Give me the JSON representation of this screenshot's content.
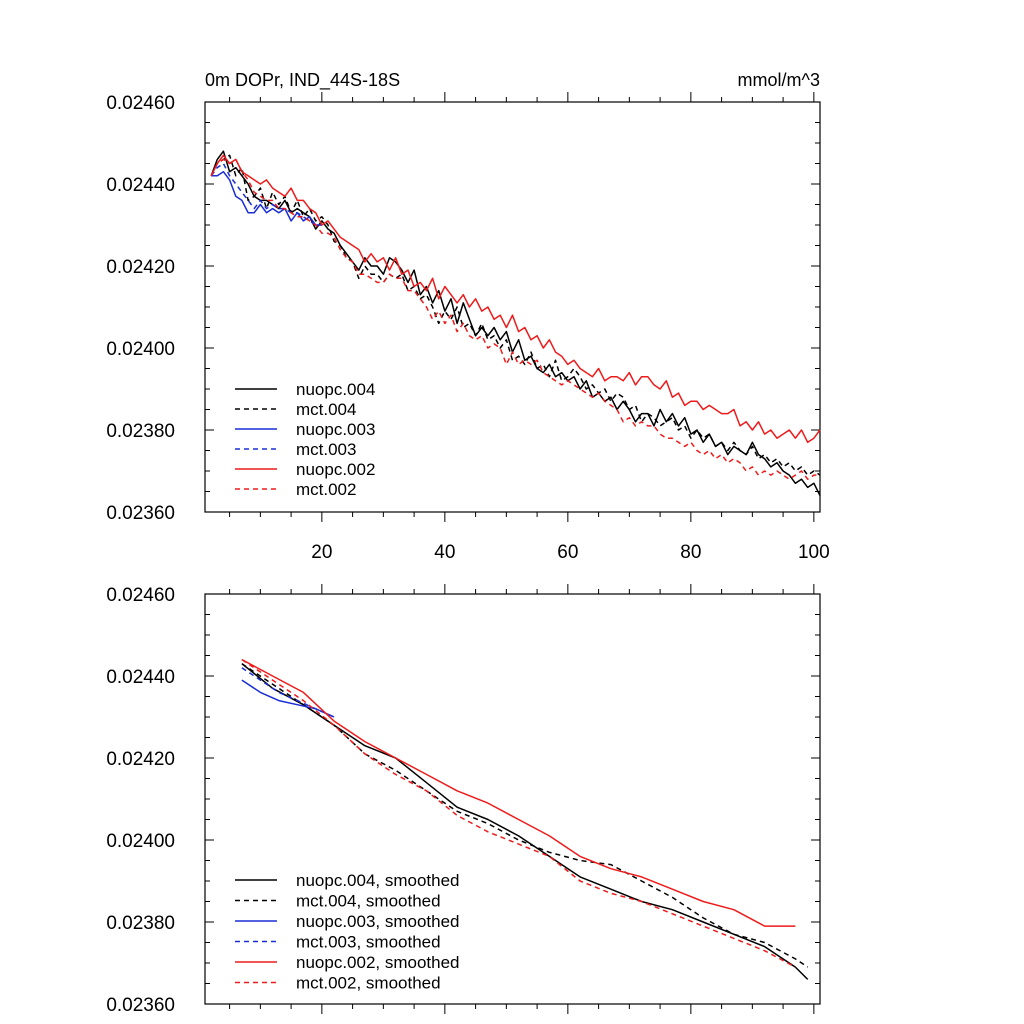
{
  "chart_data": [
    {
      "type": "line",
      "title": "0m DOPr, IND_44S-18S",
      "units": "mmol/m^3",
      "xlim": [
        1,
        101
      ],
      "ylim": [
        0.0236,
        0.0246
      ],
      "x_ticks": [
        20,
        40,
        60,
        80,
        100
      ],
      "x_tick_labels": [
        "20",
        "40",
        "60",
        "80",
        "100"
      ],
      "y_ticks": [
        0.0236,
        0.0238,
        0.024,
        0.0242,
        0.0244,
        0.0246
      ],
      "y_tick_labels": [
        "0.02360",
        "0.02380",
        "0.02400",
        "0.02420",
        "0.02440",
        "0.02460"
      ],
      "grid": false,
      "legend_position": "bottom-left",
      "series": [
        {
          "name": "nuopc.004",
          "color": "#000000",
          "dash": "solid",
          "x_start": 2,
          "values": [
            0.02442,
            0.02446,
            0.02448,
            0.02443,
            0.02444,
            0.02442,
            0.0244,
            0.02437,
            0.02436,
            0.02436,
            0.02435,
            0.02434,
            0.02436,
            0.02433,
            0.02434,
            0.02433,
            0.02432,
            0.02429,
            0.02431,
            0.02429,
            0.02428,
            0.02425,
            0.02423,
            0.02421,
            0.02419,
            0.02422,
            0.0242,
            0.0242,
            0.02418,
            0.02422,
            0.02421,
            0.02419,
            0.02416,
            0.02419,
            0.02413,
            0.02415,
            0.02411,
            0.02414,
            0.02409,
            0.02412,
            0.02406,
            0.02411,
            0.02407,
            0.02403,
            0.02405,
            0.02403,
            0.02405,
            0.02402,
            0.02404,
            0.02399,
            0.02402,
            0.02397,
            0.02398,
            0.02395,
            0.02394,
            0.02396,
            0.02393,
            0.02394,
            0.02392,
            0.02393,
            0.0239,
            0.02392,
            0.02388,
            0.02389,
            0.02387,
            0.02388,
            0.02385,
            0.02387,
            0.02385,
            0.02382,
            0.02384,
            0.02384,
            0.02381,
            0.02385,
            0.02382,
            0.02384,
            0.02381,
            0.02383,
            0.02379,
            0.0238,
            0.02377,
            0.02379,
            0.02376,
            0.02377,
            0.02374,
            0.02376,
            0.02375,
            0.02374,
            0.02377,
            0.02374,
            0.02373,
            0.02371,
            0.02372,
            0.0237,
            0.02369,
            0.02367,
            0.02368,
            0.02366,
            0.02367,
            0.02364
          ]
        },
        {
          "name": "mct.004",
          "color": "#000000",
          "dash": "dashed",
          "x_start": 2,
          "values": [
            0.02442,
            0.02445,
            0.02446,
            0.02447,
            0.02442,
            0.02444,
            0.02436,
            0.02437,
            0.02439,
            0.02434,
            0.02438,
            0.02435,
            0.02437,
            0.02433,
            0.02436,
            0.02432,
            0.02434,
            0.02431,
            0.02432,
            0.0243,
            0.02426,
            0.02425,
            0.02422,
            0.02421,
            0.02417,
            0.0242,
            0.02418,
            0.02418,
            0.02416,
            0.02418,
            0.02417,
            0.02418,
            0.02414,
            0.02415,
            0.02412,
            0.02413,
            0.0241,
            0.02406,
            0.02409,
            0.02407,
            0.0241,
            0.02405,
            0.02406,
            0.02403,
            0.02406,
            0.02402,
            0.02403,
            0.024,
            0.02402,
            0.02397,
            0.02398,
            0.02396,
            0.02399,
            0.02395,
            0.02396,
            0.02393,
            0.02397,
            0.02392,
            0.02393,
            0.02395,
            0.02393,
            0.0239,
            0.02391,
            0.02389,
            0.0239,
            0.02387,
            0.02389,
            0.02388,
            0.02385,
            0.02386,
            0.02382,
            0.02384,
            0.02383,
            0.02381,
            0.02382,
            0.02383,
            0.0238,
            0.02381,
            0.02378,
            0.0238,
            0.02378,
            0.02379,
            0.02376,
            0.02377,
            0.02375,
            0.02377,
            0.02375,
            0.02374,
            0.02376,
            0.02373,
            0.02374,
            0.02372,
            0.02373,
            0.02371,
            0.02372,
            0.0237,
            0.02371,
            0.02369,
            0.0237,
            0.02369
          ]
        },
        {
          "name": "nuopc.003",
          "color": "#1a2ed6",
          "dash": "solid",
          "x_start": 2,
          "values": [
            0.02442,
            0.02442,
            0.02443,
            0.02441,
            0.02437,
            0.02436,
            0.02433,
            0.02433,
            0.02435,
            0.02433,
            0.02434,
            0.02433,
            0.02434,
            0.02431,
            0.02433,
            0.02431,
            0.02432,
            0.0243,
            0.0243
          ]
        },
        {
          "name": "mct.003",
          "color": "#1a2ed6",
          "dash": "dashed",
          "x_start": 2,
          "values": [
            0.02442,
            0.02444,
            0.02445,
            0.02442,
            0.0244,
            0.02438,
            0.02436,
            0.02434,
            0.02436,
            0.02434,
            0.02435,
            0.02434,
            0.02434,
            0.02433,
            0.02433,
            0.02432,
            0.02431,
            0.0243,
            0.0243
          ]
        },
        {
          "name": "nuopc.002",
          "color": "#ee1b1b",
          "dash": "solid",
          "x_start": 2,
          "values": [
            0.02442,
            0.02445,
            0.02447,
            0.02445,
            0.02446,
            0.02443,
            0.02442,
            0.02441,
            0.0244,
            0.02441,
            0.02439,
            0.02438,
            0.02437,
            0.02439,
            0.02436,
            0.02436,
            0.02434,
            0.02433,
            0.0243,
            0.02431,
            0.02429,
            0.02427,
            0.02426,
            0.02425,
            0.02424,
            0.02421,
            0.02423,
            0.02421,
            0.02422,
            0.02419,
            0.02422,
            0.02418,
            0.02419,
            0.02415,
            0.02416,
            0.02414,
            0.02417,
            0.02412,
            0.02415,
            0.02413,
            0.02411,
            0.02413,
            0.0241,
            0.02412,
            0.02409,
            0.0241,
            0.02407,
            0.02408,
            0.02405,
            0.02408,
            0.02404,
            0.02405,
            0.02402,
            0.02403,
            0.024,
            0.02402,
            0.02399,
            0.02398,
            0.02396,
            0.02397,
            0.02395,
            0.02394,
            0.02393,
            0.02395,
            0.02392,
            0.02393,
            0.02393,
            0.02392,
            0.02394,
            0.02391,
            0.02393,
            0.02393,
            0.02391,
            0.0239,
            0.02392,
            0.02388,
            0.02389,
            0.02386,
            0.02387,
            0.02387,
            0.02385,
            0.02386,
            0.02385,
            0.02384,
            0.02384,
            0.02385,
            0.02381,
            0.02382,
            0.0238,
            0.02382,
            0.02379,
            0.0238,
            0.02378,
            0.02379,
            0.0238,
            0.02378,
            0.0238,
            0.02377,
            0.02378,
            0.0238
          ]
        },
        {
          "name": "mct.002",
          "color": "#ee1b1b",
          "dash": "dashed",
          "x_start": 2,
          "values": [
            0.02442,
            0.02445,
            0.02446,
            0.02445,
            0.02446,
            0.02443,
            0.02441,
            0.02438,
            0.02437,
            0.02436,
            0.02436,
            0.02434,
            0.02434,
            0.02433,
            0.02432,
            0.02432,
            0.02431,
            0.0243,
            0.02428,
            0.02428,
            0.02427,
            0.02424,
            0.02422,
            0.02421,
            0.02418,
            0.02418,
            0.02417,
            0.02416,
            0.02416,
            0.02418,
            0.02417,
            0.02417,
            0.02414,
            0.02414,
            0.02412,
            0.0241,
            0.02407,
            0.02409,
            0.02406,
            0.02408,
            0.02404,
            0.02406,
            0.02403,
            0.02402,
            0.02403,
            0.024,
            0.02401,
            0.024,
            0.02396,
            0.02399,
            0.02396,
            0.02397,
            0.02396,
            0.02397,
            0.02394,
            0.02393,
            0.02392,
            0.02391,
            0.02392,
            0.02391,
            0.0239,
            0.02389,
            0.02388,
            0.02389,
            0.02387,
            0.02386,
            0.02385,
            0.02382,
            0.02383,
            0.02381,
            0.02382,
            0.02381,
            0.02381,
            0.02379,
            0.02378,
            0.02378,
            0.02377,
            0.02376,
            0.02377,
            0.02375,
            0.02374,
            0.02375,
            0.02373,
            0.02374,
            0.02372,
            0.02373,
            0.02372,
            0.0237,
            0.02371,
            0.02369,
            0.0237,
            0.02369,
            0.0237,
            0.02369,
            0.02368,
            0.02369,
            0.0237,
            0.02368,
            0.02369,
            0.02369
          ]
        }
      ]
    },
    {
      "type": "line",
      "xlim": [
        1,
        101
      ],
      "ylim": [
        0.0236,
        0.0246
      ],
      "y_ticks": [
        0.0236,
        0.0238,
        0.024,
        0.0242,
        0.0244,
        0.0246
      ],
      "y_tick_labels": [
        "0.02360",
        "0.02380",
        "0.02400",
        "0.02420",
        "0.02440",
        "0.02460"
      ],
      "grid": false,
      "legend_position": "bottom-left",
      "series": [
        {
          "name": "nuopc.004, smoothed",
          "color": "#000000",
          "dash": "solid",
          "points": [
            [
              7,
              0.02443
            ],
            [
              12,
              0.02437
            ],
            [
              17,
              0.02433
            ],
            [
              22,
              0.02428
            ],
            [
              27,
              0.02423
            ],
            [
              32,
              0.0242
            ],
            [
              37,
              0.02414
            ],
            [
              42,
              0.02408
            ],
            [
              47,
              0.02405
            ],
            [
              52,
              0.02401
            ],
            [
              57,
              0.02396
            ],
            [
              62,
              0.02391
            ],
            [
              67,
              0.02388
            ],
            [
              72,
              0.02385
            ],
            [
              77,
              0.02383
            ],
            [
              82,
              0.0238
            ],
            [
              87,
              0.02377
            ],
            [
              92,
              0.02374
            ],
            [
              97,
              0.02369
            ],
            [
              99,
              0.02366
            ]
          ]
        },
        {
          "name": "mct.004, smoothed",
          "color": "#000000",
          "dash": "dashed",
          "points": [
            [
              7,
              0.02443
            ],
            [
              12,
              0.02438
            ],
            [
              17,
              0.02433
            ],
            [
              22,
              0.02428
            ],
            [
              27,
              0.02421
            ],
            [
              32,
              0.02417
            ],
            [
              37,
              0.02412
            ],
            [
              42,
              0.02407
            ],
            [
              47,
              0.02404
            ],
            [
              52,
              0.024
            ],
            [
              57,
              0.02397
            ],
            [
              62,
              0.02395
            ],
            [
              67,
              0.02394
            ],
            [
              72,
              0.0239
            ],
            [
              77,
              0.02386
            ],
            [
              82,
              0.02381
            ],
            [
              87,
              0.02377
            ],
            [
              92,
              0.02375
            ],
            [
              97,
              0.02371
            ],
            [
              99,
              0.02369
            ]
          ]
        },
        {
          "name": "nuopc.003, smoothed",
          "color": "#1a2ed6",
          "dash": "solid",
          "points": [
            [
              7,
              0.02439
            ],
            [
              10,
              0.02436
            ],
            [
              13,
              0.02434
            ],
            [
              16,
              0.02433
            ],
            [
              19,
              0.02432
            ],
            [
              22,
              0.0243
            ]
          ]
        },
        {
          "name": "mct.003, smoothed",
          "color": "#1a2ed6",
          "dash": "dashed",
          "points": [
            [
              7,
              0.02442
            ],
            [
              10,
              0.02439
            ],
            [
              13,
              0.02436
            ],
            [
              16,
              0.02434
            ],
            [
              19,
              0.02432
            ],
            [
              22,
              0.0243
            ]
          ]
        },
        {
          "name": "nuopc.002, smoothed",
          "color": "#ee1b1b",
          "dash": "solid",
          "points": [
            [
              7,
              0.02444
            ],
            [
              12,
              0.0244
            ],
            [
              17,
              0.02436
            ],
            [
              22,
              0.02429
            ],
            [
              27,
              0.02424
            ],
            [
              32,
              0.0242
            ],
            [
              37,
              0.02416
            ],
            [
              42,
              0.02412
            ],
            [
              47,
              0.02409
            ],
            [
              52,
              0.02405
            ],
            [
              57,
              0.02401
            ],
            [
              62,
              0.02396
            ],
            [
              67,
              0.02393
            ],
            [
              72,
              0.02391
            ],
            [
              77,
              0.02388
            ],
            [
              82,
              0.02385
            ],
            [
              87,
              0.02383
            ],
            [
              92,
              0.02379
            ],
            [
              97,
              0.02379
            ]
          ]
        },
        {
          "name": "mct.002, smoothed",
          "color": "#ee1b1b",
          "dash": "dashed",
          "points": [
            [
              7,
              0.02444
            ],
            [
              12,
              0.02439
            ],
            [
              17,
              0.02434
            ],
            [
              22,
              0.02428
            ],
            [
              27,
              0.02421
            ],
            [
              32,
              0.02416
            ],
            [
              37,
              0.02412
            ],
            [
              42,
              0.02406
            ],
            [
              47,
              0.02402
            ],
            [
              52,
              0.02399
            ],
            [
              57,
              0.02396
            ],
            [
              62,
              0.0239
            ],
            [
              67,
              0.02387
            ],
            [
              72,
              0.02385
            ],
            [
              77,
              0.02382
            ],
            [
              82,
              0.02379
            ],
            [
              87,
              0.02376
            ],
            [
              92,
              0.02373
            ],
            [
              97,
              0.02369
            ]
          ]
        }
      ]
    }
  ]
}
